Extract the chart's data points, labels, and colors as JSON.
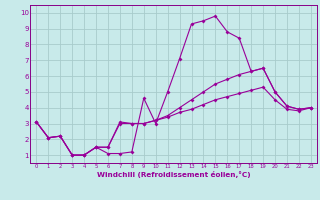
{
  "xlabel": "Windchill (Refroidissement éolien,°C)",
  "bg_color": "#c8eaea",
  "grid_color": "#a8cccc",
  "line_color": "#990099",
  "spine_color": "#880088",
  "xlim": [
    -0.5,
    23.5
  ],
  "ylim": [
    0.5,
    10.5
  ],
  "xticks": [
    0,
    1,
    2,
    3,
    4,
    5,
    6,
    7,
    8,
    9,
    10,
    11,
    12,
    13,
    14,
    15,
    16,
    17,
    18,
    19,
    20,
    21,
    22,
    23
  ],
  "yticks": [
    1,
    2,
    3,
    4,
    5,
    6,
    7,
    8,
    9,
    10
  ],
  "line1_x": [
    0,
    1,
    2,
    3,
    4,
    5,
    6,
    7,
    8,
    9,
    10,
    11,
    12,
    13,
    14,
    15,
    16,
    17,
    18,
    19,
    20,
    21,
    22,
    23
  ],
  "line1_y": [
    3.1,
    2.1,
    2.2,
    1.0,
    1.0,
    1.5,
    1.1,
    1.1,
    1.2,
    4.6,
    3.0,
    5.0,
    7.1,
    9.3,
    9.5,
    9.8,
    8.8,
    8.4,
    6.3,
    6.5,
    5.0,
    4.1,
    3.9,
    4.0
  ],
  "line2_x": [
    0,
    1,
    2,
    3,
    4,
    5,
    6,
    7,
    8,
    9,
    10,
    11,
    12,
    13,
    14,
    15,
    16,
    17,
    18,
    19,
    20,
    21,
    22,
    23
  ],
  "line2_y": [
    3.1,
    2.1,
    2.2,
    1.0,
    1.0,
    1.5,
    1.5,
    3.1,
    3.0,
    3.0,
    3.2,
    3.5,
    4.0,
    4.5,
    5.0,
    5.5,
    5.8,
    6.1,
    6.3,
    6.5,
    5.0,
    4.1,
    3.9,
    4.0
  ],
  "line3_x": [
    0,
    1,
    2,
    3,
    4,
    5,
    6,
    7,
    8,
    9,
    10,
    11,
    12,
    13,
    14,
    15,
    16,
    17,
    18,
    19,
    20,
    21,
    22,
    23
  ],
  "line3_y": [
    3.1,
    2.1,
    2.2,
    1.0,
    1.0,
    1.5,
    1.5,
    3.0,
    3.0,
    3.0,
    3.2,
    3.4,
    3.7,
    3.9,
    4.2,
    4.5,
    4.7,
    4.9,
    5.1,
    5.3,
    4.5,
    3.9,
    3.8,
    4.0
  ]
}
